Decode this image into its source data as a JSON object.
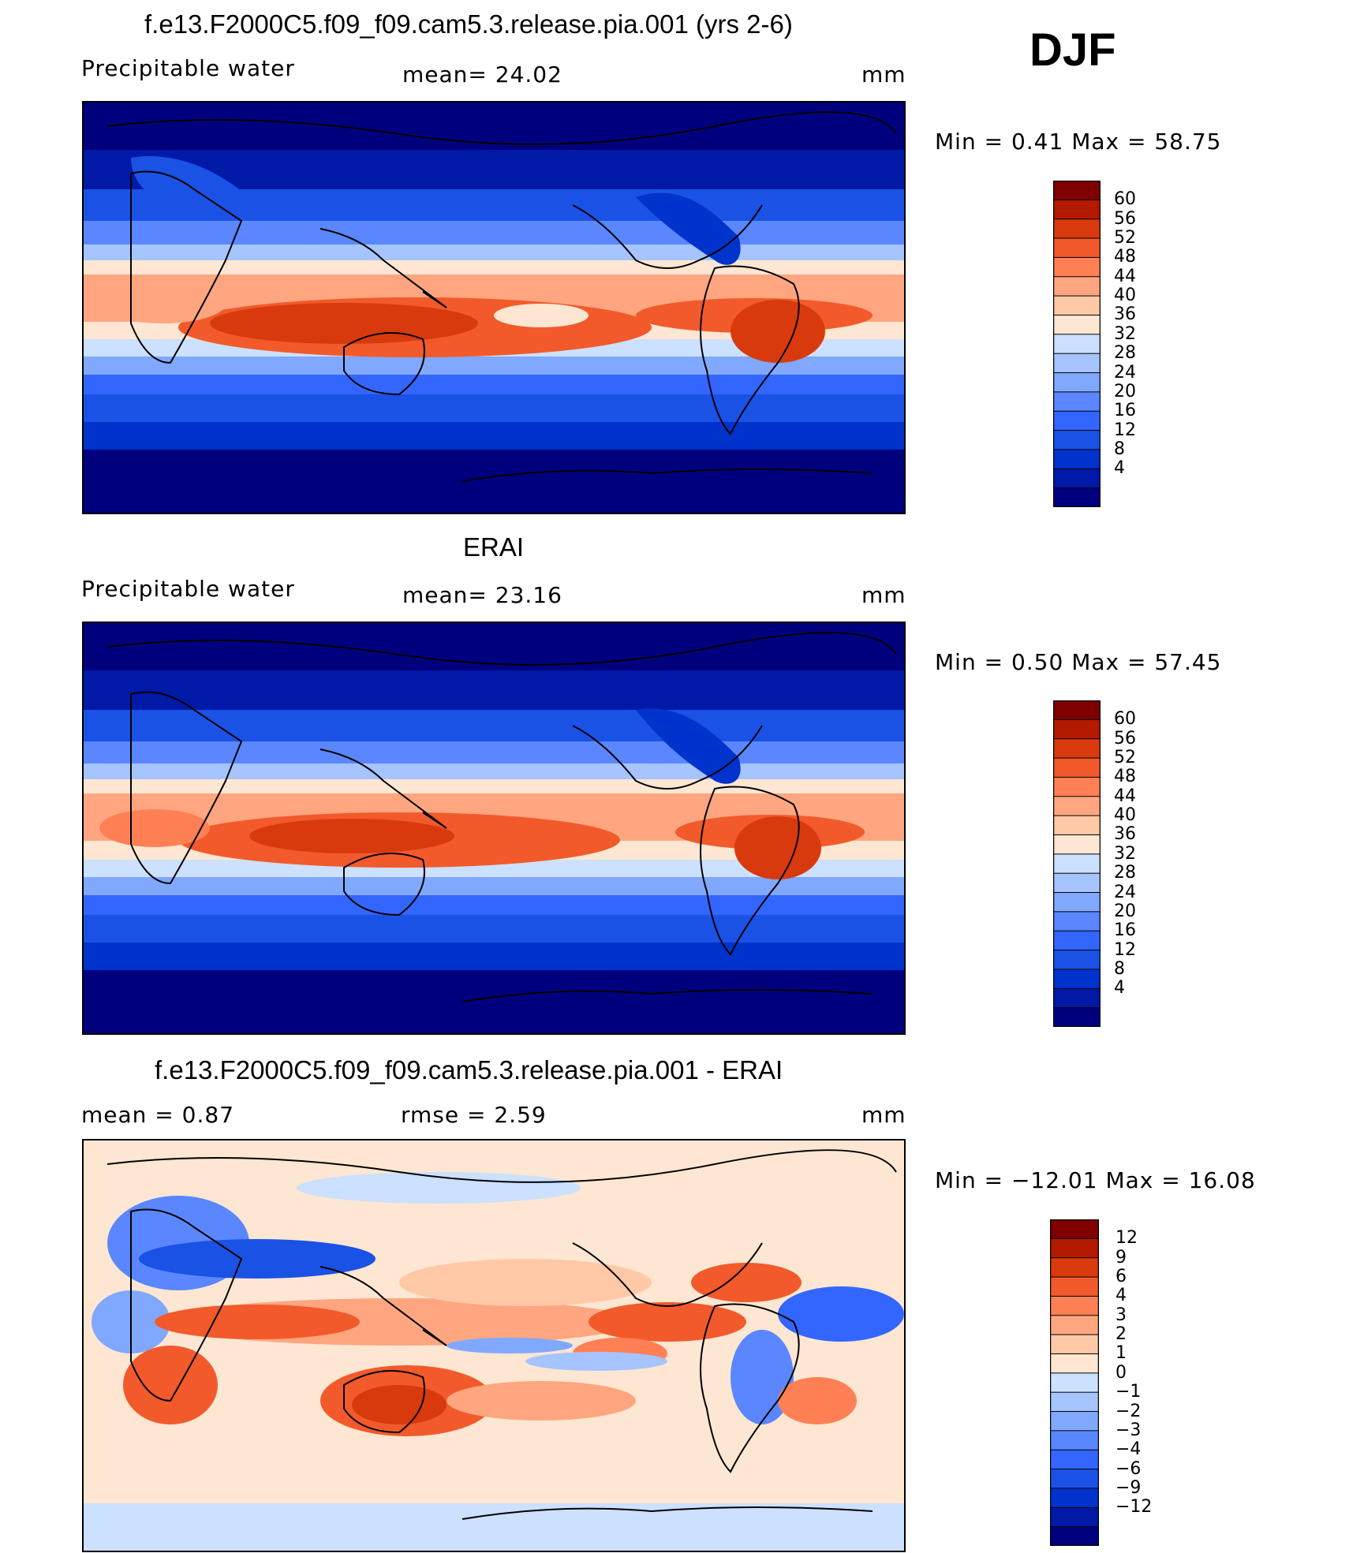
{
  "season": "DJF",
  "panels": [
    {
      "id": "model",
      "title": "f.e13.F2000C5.f09_f09.cam5.3.release.pia.001 (yrs 2-6)",
      "left_label": "Precipitable  water",
      "center_label": "mean=   24.02",
      "units": "mm",
      "minmax": "Min  =     0.41  Max  =    58.75",
      "colorbar_ticks": [
        "60",
        "56",
        "52",
        "48",
        "44",
        "40",
        "36",
        "32",
        "28",
        "24",
        "20",
        "16",
        "12",
        "8",
        "4"
      ],
      "colors": [
        "#00007f",
        "#0019a6",
        "#0033cc",
        "#1a52e6",
        "#3366ff",
        "#5a87ff",
        "#80a8ff",
        "#a6c4ff",
        "#cce0ff",
        "#fde6d2",
        "#ffc9a8",
        "#ffa680",
        "#ff8055",
        "#f25a2b",
        "#d93a0d",
        "#b31a00",
        "#800000"
      ]
    },
    {
      "id": "obs",
      "title": "ERAI",
      "left_label": "Precipitable  water",
      "center_label": "mean=   23.16",
      "units": "mm",
      "minmax": "Min  =     0.50  Max  =    57.45",
      "colorbar_ticks": [
        "60",
        "56",
        "52",
        "48",
        "44",
        "40",
        "36",
        "32",
        "28",
        "24",
        "20",
        "16",
        "12",
        "8",
        "4"
      ],
      "colors": [
        "#00007f",
        "#0019a6",
        "#0033cc",
        "#1a52e6",
        "#3366ff",
        "#5a87ff",
        "#80a8ff",
        "#a6c4ff",
        "#cce0ff",
        "#fde6d2",
        "#ffc9a8",
        "#ffa680",
        "#ff8055",
        "#f25a2b",
        "#d93a0d",
        "#b31a00",
        "#800000"
      ]
    },
    {
      "id": "diff",
      "title": "f.e13.F2000C5.f09_f09.cam5.3.release.pia.001 - ERAI",
      "left_label": "mean  =     0.87",
      "center_label": "rmse  =     2.59",
      "units": "mm",
      "minmax": "Min  = −12.01  Max  =    16.08",
      "colorbar_ticks": [
        "12",
        "9",
        "6",
        "4",
        "3",
        "2",
        "1",
        "0",
        "−1",
        "−2",
        "−3",
        "−4",
        "−6",
        "−9",
        "−12"
      ],
      "colors": [
        "#00007f",
        "#0019a6",
        "#0033cc",
        "#1a52e6",
        "#3366ff",
        "#5a87ff",
        "#80a8ff",
        "#a6c4ff",
        "#cce0ff",
        "#fde6d2",
        "#ffc9a8",
        "#ffa680",
        "#ff8055",
        "#f25a2b",
        "#d93a0d",
        "#b31a00",
        "#800000"
      ]
    }
  ]
}
